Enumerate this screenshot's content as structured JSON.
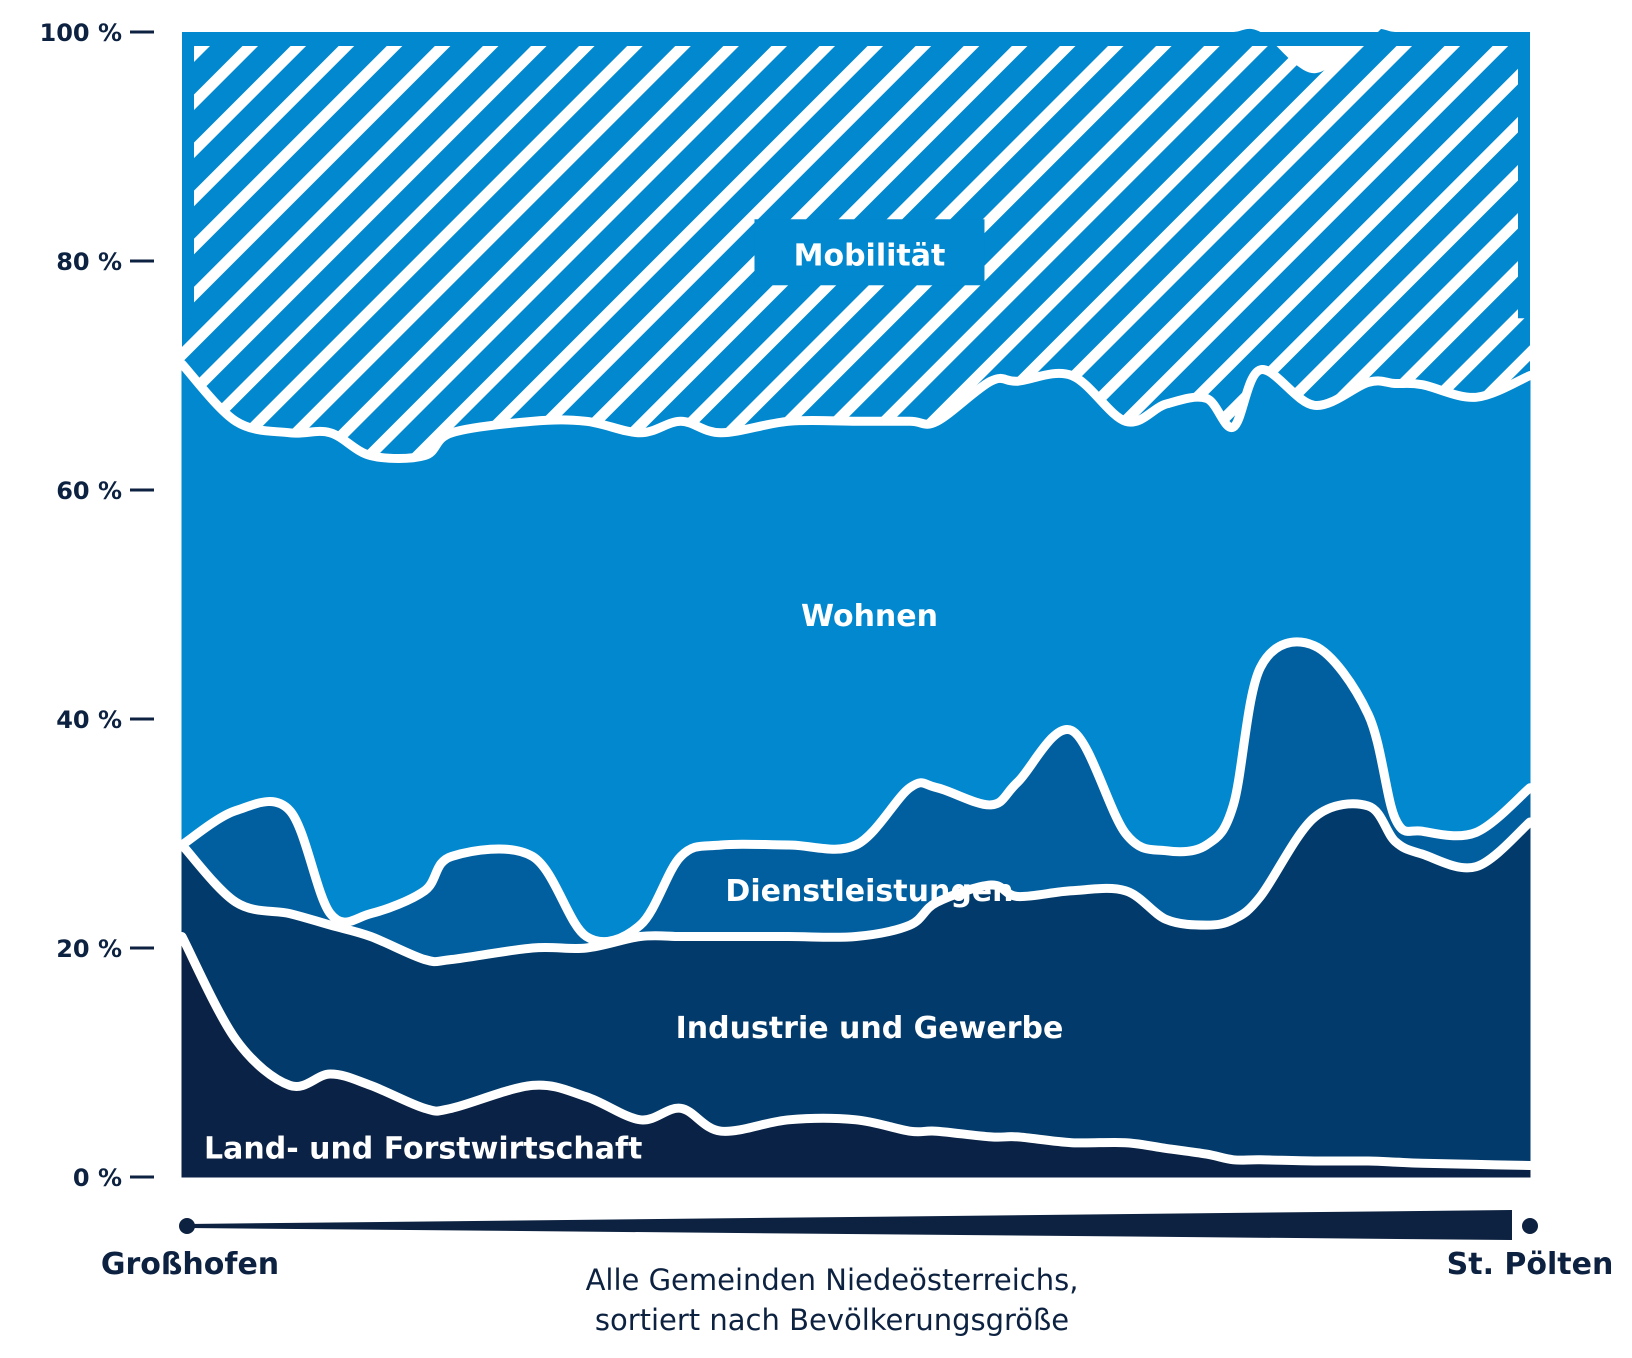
{
  "chart_data": {
    "type": "area",
    "stacked": true,
    "normalized_percent": true,
    "x_start_label": "Großhofen",
    "x_end_label": "St. Pölten",
    "xlabel_lines": [
      "Alle Gemeinden Niedeösterreichs,",
      "sortiert nach Bevölkerungsgröße"
    ],
    "ylim": [
      0,
      100
    ],
    "y_ticks": [
      "0 %",
      "20 %",
      "40 %",
      "60 %",
      "80 %",
      "100 %"
    ],
    "x": [
      0,
      0.04,
      0.08,
      0.11,
      0.14,
      0.18,
      0.2,
      0.26,
      0.3,
      0.34,
      0.37,
      0.4,
      0.45,
      0.5,
      0.54,
      0.56,
      0.6,
      0.62,
      0.66,
      0.7,
      0.73,
      0.76,
      0.78,
      0.8,
      0.84,
      0.88,
      0.9,
      0.92,
      0.96,
      1.0
    ],
    "series": [
      {
        "name": "Land- und Forstwirtschaft",
        "color": "#0a2245",
        "pattern": "solid",
        "values": [
          21,
          12,
          8,
          9,
          8,
          6,
          6,
          8,
          7,
          5,
          6,
          4,
          5,
          5,
          4,
          4,
          3.5,
          3.5,
          3,
          3,
          2.5,
          2,
          1.5,
          1.5,
          1.4,
          1.4,
          1.3,
          1.2,
          1.1,
          1
        ]
      },
      {
        "name": "Industrie und Gewerbe",
        "color": "#023a6b",
        "pattern": "solid",
        "values": [
          8,
          12,
          15,
          13,
          13,
          13,
          13,
          12,
          13,
          16,
          15,
          17,
          16,
          16,
          18,
          20,
          22,
          21,
          22,
          22,
          20,
          20,
          21,
          23,
          30,
          31,
          28,
          27,
          26,
          30
        ]
      },
      {
        "name": "Dienstleistungen",
        "color": "#015fa0",
        "pattern": "solid",
        "values": [
          0,
          8,
          9,
          1,
          2,
          6,
          9,
          8,
          1,
          1,
          7,
          8,
          8,
          8,
          12,
          10,
          7,
          10,
          14,
          5,
          6,
          7,
          10,
          20,
          15,
          8,
          2,
          2,
          3,
          3
        ]
      },
      {
        "name": "Wohnen",
        "color": "#0188cf",
        "pattern": "solid",
        "values": [
          42,
          34,
          33,
          42,
          40,
          38,
          37,
          38,
          45,
          43,
          38,
          36,
          37,
          37,
          32,
          32,
          37,
          35,
          31,
          36,
          39,
          39,
          33,
          26,
          21,
          29,
          38,
          39,
          38,
          36
        ]
      },
      {
        "name": "Mobilität",
        "color": "#0188cf",
        "pattern": "hatched",
        "values": [
          29,
          34,
          35,
          35,
          37,
          37,
          35,
          34,
          34,
          35,
          34,
          35,
          34,
          34,
          34,
          34,
          30.5,
          30.5,
          30,
          34,
          32.5,
          32,
          34.5,
          29.5,
          29,
          30.6,
          30.7,
          30.8,
          31.9,
          30
        ]
      }
    ],
    "labels": [
      {
        "text": "Mobilität",
        "x": 0.51,
        "y": 80.5,
        "boxed": true
      },
      {
        "text": "Wohnen",
        "x": 0.51,
        "y": 49
      },
      {
        "text": "Dienstleistungen",
        "x": 0.51,
        "y": 25
      },
      {
        "text": "Industrie und Gewerbe",
        "x": 0.51,
        "y": 13
      },
      {
        "text": "Land- und Forstwirtschaft",
        "x": 0.18,
        "y": 2.5
      }
    ],
    "grid": false,
    "legend": "none"
  }
}
